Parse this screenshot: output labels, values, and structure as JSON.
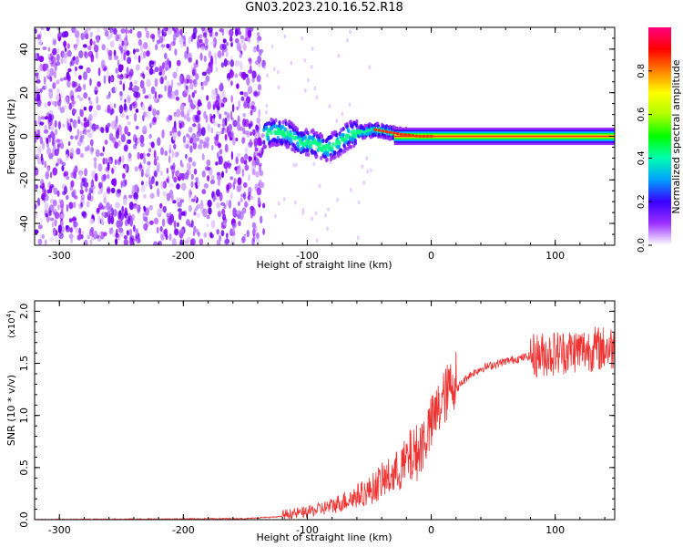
{
  "title": "GN03.2023.210.16.52.R18",
  "chart_data": [
    {
      "type": "heatmap",
      "xlabel": "Height of straight line (km)",
      "ylabel": "Frequency (Hz)",
      "xlim": [
        -320,
        148
      ],
      "ylim": [
        -50,
        50
      ],
      "xticks": [
        -300,
        -200,
        -100,
        0,
        100
      ],
      "yticks": [
        -40,
        -20,
        0,
        20,
        40
      ],
      "colorbar": {
        "label": "Normalized spectral amplitude",
        "range": [
          0,
          1
        ],
        "ticks": [
          "0.0",
          "0.2",
          "0.4",
          "0.6",
          "0.8"
        ],
        "colors": [
          "#ffffff",
          "#9b30ff",
          "#3a00ff",
          "#00a0ff",
          "#00ffb0",
          "#00ff00",
          "#b0ff00",
          "#ffff00",
          "#ff8000",
          "#ff0000",
          "#ff0080"
        ]
      },
      "noise_region_x": [
        -320,
        -135
      ],
      "signal_trace": [
        {
          "x": -135,
          "f": 1
        },
        {
          "x": -125,
          "f": 2
        },
        {
          "x": -115,
          "f": 1
        },
        {
          "x": -105,
          "f": -3
        },
        {
          "x": -95,
          "f": -3
        },
        {
          "x": -85,
          "f": -6
        },
        {
          "x": -75,
          "f": -3
        },
        {
          "x": -65,
          "f": 1
        },
        {
          "x": -55,
          "f": 2
        },
        {
          "x": -45,
          "f": 3
        },
        {
          "x": -35,
          "f": 2
        },
        {
          "x": -25,
          "f": 1
        },
        {
          "x": -10,
          "f": 0
        },
        {
          "x": 10,
          "f": 0
        },
        {
          "x": 50,
          "f": 0
        },
        {
          "x": 100,
          "f": 0
        },
        {
          "x": 148,
          "f": 0
        }
      ]
    },
    {
      "type": "line",
      "xlabel": "Height of straight line (km)",
      "ylabel": "SNR (10 * v/v)",
      "yscale_label": "(x10",
      "yscale_exponent": "4",
      "yscale_close": ")",
      "xlim": [
        -320,
        148
      ],
      "ylim": [
        0,
        2.1
      ],
      "xticks": [
        -300,
        -200,
        -100,
        0,
        100
      ],
      "yticks": [
        "0.0",
        "0.5",
        "1.0",
        "1.5",
        "2.0"
      ],
      "color": "#ee3333",
      "series": [
        {
          "x": [
            -320,
            -150,
            -120,
            -100,
            -80,
            -60,
            -50,
            -40,
            -30,
            -20,
            -10,
            0,
            10,
            20,
            30,
            40,
            60,
            80,
            100,
            120,
            148
          ],
          "y": [
            0.0,
            0.01,
            0.03,
            0.05,
            0.1,
            0.18,
            0.22,
            0.3,
            0.35,
            0.45,
            0.55,
            0.8,
            1.05,
            1.25,
            1.38,
            1.45,
            1.52,
            1.57,
            1.6,
            1.63,
            1.65
          ]
        }
      ]
    }
  ]
}
